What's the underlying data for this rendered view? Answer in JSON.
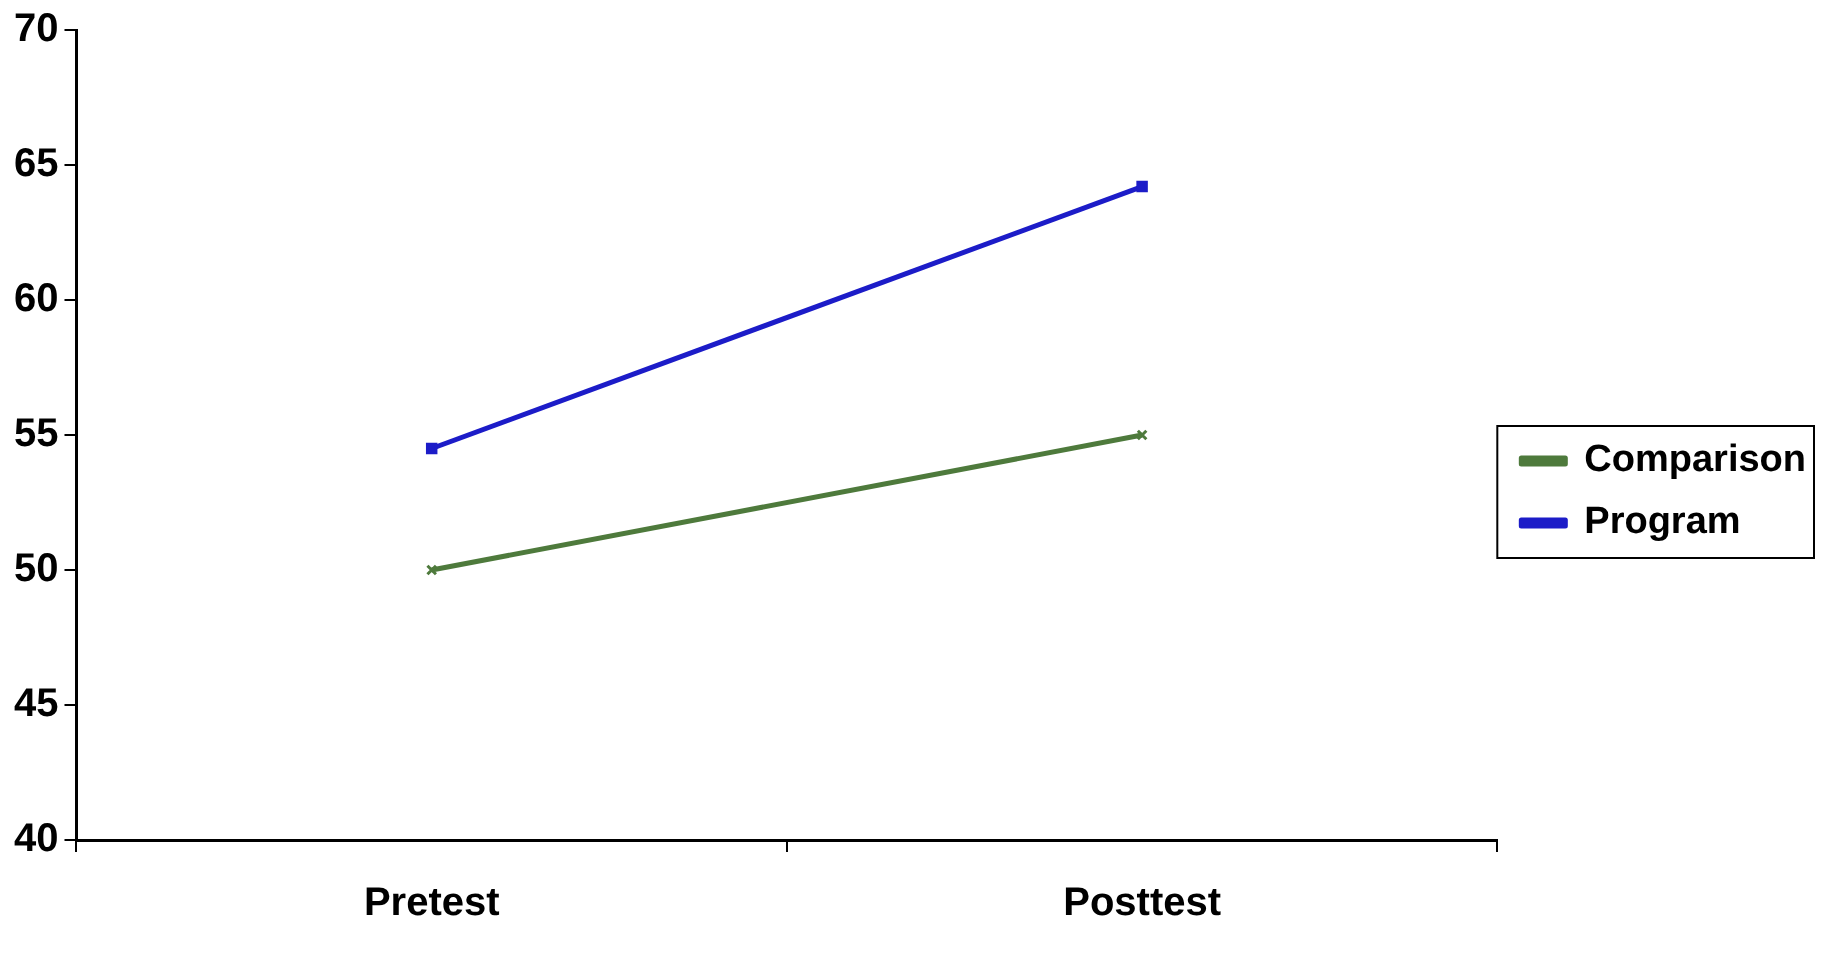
{
  "chart_data": {
    "type": "line",
    "categories": [
      "Pretest",
      "Posttest"
    ],
    "series": [
      {
        "name": "Comparison",
        "color": "#4e7a3c",
        "values": [
          50,
          55
        ],
        "marker": "cross"
      },
      {
        "name": "Program",
        "color": "#1c1cc8",
        "values": [
          54.5,
          64.2
        ],
        "marker": "square"
      }
    ],
    "ylim": [
      40,
      70
    ],
    "yticks": [
      40,
      45,
      50,
      55,
      60,
      65,
      70
    ],
    "grid": false,
    "legend": "right"
  }
}
